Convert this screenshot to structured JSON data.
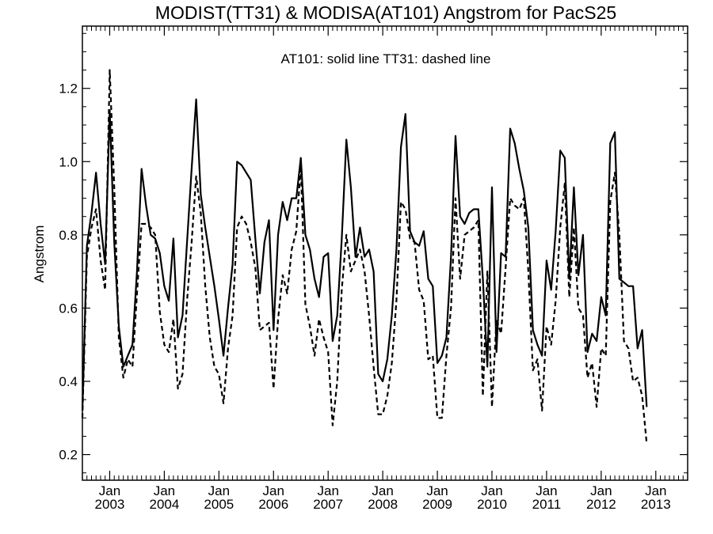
{
  "chart_data": {
    "type": "line",
    "title": "MODIST(TT31) & MODISA(AT101)  Angstrom for PacS25",
    "annotation": "AT101: solid line   TT31: dashed line",
    "xlabel": "",
    "ylabel": "Angstrom",
    "xlim": [
      "2002-07",
      "2013-08"
    ],
    "ylim": [
      0.13,
      1.37
    ],
    "y_ticks": [
      0.2,
      0.4,
      0.6,
      0.8,
      1.0,
      1.2
    ],
    "y_tick_labels": [
      "0.2",
      "0.4",
      "0.6",
      "0.8",
      "1.0",
      "1.2"
    ],
    "x_ticks": [
      {
        "month": "Jan",
        "year": "2003",
        "date": "2003-01"
      },
      {
        "month": "Jan",
        "year": "2004",
        "date": "2004-01"
      },
      {
        "month": "Jan",
        "year": "2005",
        "date": "2005-01"
      },
      {
        "month": "Jan",
        "year": "2006",
        "date": "2006-01"
      },
      {
        "month": "Jan",
        "year": "2007",
        "date": "2007-01"
      },
      {
        "month": "Jan",
        "year": "2008",
        "date": "2008-01"
      },
      {
        "month": "Jan",
        "year": "2009",
        "date": "2009-01"
      },
      {
        "month": "Jan",
        "year": "2010",
        "date": "2010-01"
      },
      {
        "month": "Jan",
        "year": "2011",
        "date": "2011-01"
      },
      {
        "month": "Jan",
        "year": "2012",
        "date": "2012-01"
      },
      {
        "month": "Jan",
        "year": "2013",
        "date": "2013-01"
      }
    ],
    "grid": false,
    "legend": "none",
    "series": [
      {
        "style": "solid",
        "color": "#000000",
        "points": [
          [
            "2002-07",
            0.32
          ],
          [
            "2002-08",
            0.77
          ],
          [
            "2002-09",
            0.86
          ],
          [
            "2002-10",
            0.97
          ],
          [
            "2002-11",
            0.83
          ],
          [
            "2002-12",
            0.72
          ],
          [
            "2003-01",
            1.14
          ],
          [
            "2003-02",
            0.78
          ],
          [
            "2003-03",
            0.55
          ],
          [
            "2003-04",
            0.44
          ],
          [
            "2003-05",
            0.47
          ],
          [
            "2003-06",
            0.5
          ],
          [
            "2003-07",
            0.7
          ],
          [
            "2003-08",
            0.98
          ],
          [
            "2003-09",
            0.88
          ],
          [
            "2003-10",
            0.8
          ],
          [
            "2003-11",
            0.79
          ],
          [
            "2003-12",
            0.75
          ],
          [
            "2004-01",
            0.66
          ],
          [
            "2004-02",
            0.62
          ],
          [
            "2004-03",
            0.79
          ],
          [
            "2004-04",
            0.52
          ],
          [
            "2004-05",
            0.58
          ],
          [
            "2004-06",
            0.78
          ],
          [
            "2004-07",
            0.98
          ],
          [
            "2004-08",
            1.17
          ],
          [
            "2004-09",
            0.91
          ],
          [
            "2004-10",
            0.82
          ],
          [
            "2004-11",
            0.74
          ],
          [
            "2004-12",
            0.66
          ],
          [
            "2005-01",
            0.57
          ],
          [
            "2005-02",
            0.47
          ],
          [
            "2005-03",
            0.6
          ],
          [
            "2005-04",
            0.72
          ],
          [
            "2005-05",
            1.0
          ],
          [
            "2005-06",
            0.99
          ],
          [
            "2005-07",
            0.97
          ],
          [
            "2005-08",
            0.95
          ],
          [
            "2005-09",
            0.79
          ],
          [
            "2005-10",
            0.64
          ],
          [
            "2005-11",
            0.78
          ],
          [
            "2005-12",
            0.84
          ],
          [
            "2006-01",
            0.54
          ],
          [
            "2006-02",
            0.8
          ],
          [
            "2006-03",
            0.89
          ],
          [
            "2006-04",
            0.84
          ],
          [
            "2006-05",
            0.9
          ],
          [
            "2006-06",
            0.9
          ],
          [
            "2006-07",
            1.01
          ],
          [
            "2006-08",
            0.8
          ],
          [
            "2006-09",
            0.76
          ],
          [
            "2006-10",
            0.68
          ],
          [
            "2006-11",
            0.63
          ],
          [
            "2006-12",
            0.74
          ],
          [
            "2007-01",
            0.75
          ],
          [
            "2007-02",
            0.51
          ],
          [
            "2007-03",
            0.58
          ],
          [
            "2007-04",
            0.79
          ],
          [
            "2007-05",
            1.06
          ],
          [
            "2007-06",
            0.93
          ],
          [
            "2007-07",
            0.74
          ],
          [
            "2007-08",
            0.82
          ],
          [
            "2007-09",
            0.74
          ],
          [
            "2007-10",
            0.76
          ],
          [
            "2007-11",
            0.7
          ],
          [
            "2007-12",
            0.42
          ],
          [
            "2008-01",
            0.4
          ],
          [
            "2008-02",
            0.46
          ],
          [
            "2008-03",
            0.58
          ],
          [
            "2008-04",
            0.76
          ],
          [
            "2008-05",
            1.04
          ],
          [
            "2008-06",
            1.13
          ],
          [
            "2008-07",
            0.81
          ],
          [
            "2008-08",
            0.78
          ],
          [
            "2008-09",
            0.77
          ],
          [
            "2008-10",
            0.81
          ],
          [
            "2008-11",
            0.68
          ],
          [
            "2008-12",
            0.66
          ],
          [
            "2009-01",
            0.45
          ],
          [
            "2009-02",
            0.47
          ],
          [
            "2009-03",
            0.52
          ],
          [
            "2009-04",
            0.74
          ],
          [
            "2009-05",
            1.07
          ],
          [
            "2009-06",
            0.85
          ],
          [
            "2009-07",
            0.83
          ],
          [
            "2009-08",
            0.86
          ],
          [
            "2009-09",
            0.87
          ],
          [
            "2009-10",
            0.87
          ],
          [
            "2009-11",
            0.68
          ],
          [
            "2009-12",
            0.44
          ],
          [
            "2010-01",
            0.93
          ],
          [
            "2010-02",
            0.48
          ],
          [
            "2010-03",
            0.75
          ],
          [
            "2010-04",
            0.74
          ],
          [
            "2010-05",
            1.09
          ],
          [
            "2010-06",
            1.05
          ],
          [
            "2010-07",
            0.98
          ],
          [
            "2010-08",
            0.92
          ],
          [
            "2010-09",
            0.82
          ],
          [
            "2010-10",
            0.54
          ],
          [
            "2010-11",
            0.5
          ],
          [
            "2010-12",
            0.47
          ],
          [
            "2011-01",
            0.73
          ],
          [
            "2011-02",
            0.65
          ],
          [
            "2011-03",
            0.81
          ],
          [
            "2011-04",
            1.03
          ],
          [
            "2011-05",
            1.01
          ],
          [
            "2011-06",
            0.68
          ],
          [
            "2011-07",
            0.93
          ],
          [
            "2011-08",
            0.69
          ],
          [
            "2011-09",
            0.8
          ],
          [
            "2011-10",
            0.48
          ],
          [
            "2011-11",
            0.53
          ],
          [
            "2011-12",
            0.51
          ],
          [
            "2012-01",
            0.63
          ],
          [
            "2012-02",
            0.58
          ],
          [
            "2012-03",
            1.05
          ],
          [
            "2012-04",
            1.08
          ],
          [
            "2012-05",
            0.68
          ],
          [
            "2012-06",
            0.67
          ],
          [
            "2012-07",
            0.66
          ],
          [
            "2012-08",
            0.66
          ],
          [
            "2012-09",
            0.49
          ],
          [
            "2012-10",
            0.54
          ],
          [
            "2012-11",
            0.33
          ]
        ]
      },
      {
        "style": "dashed",
        "color": "#000000",
        "points": [
          [
            "2002-07",
            0.3
          ],
          [
            "2002-08",
            0.74
          ],
          [
            "2002-09",
            0.82
          ],
          [
            "2002-10",
            0.87
          ],
          [
            "2002-11",
            0.73
          ],
          [
            "2002-12",
            0.65
          ],
          [
            "2003-01",
            1.25
          ],
          [
            "2003-02",
            0.93
          ],
          [
            "2003-03",
            0.52
          ],
          [
            "2003-04",
            0.41
          ],
          [
            "2003-05",
            0.46
          ],
          [
            "2003-06",
            0.44
          ],
          [
            "2003-07",
            0.64
          ],
          [
            "2003-08",
            0.83
          ],
          [
            "2003-09",
            0.83
          ],
          [
            "2003-10",
            0.82
          ],
          [
            "2003-11",
            0.8
          ],
          [
            "2003-12",
            0.59
          ],
          [
            "2004-01",
            0.5
          ],
          [
            "2004-02",
            0.48
          ],
          [
            "2004-03",
            0.57
          ],
          [
            "2004-04",
            0.38
          ],
          [
            "2004-05",
            0.42
          ],
          [
            "2004-06",
            0.62
          ],
          [
            "2004-07",
            0.78
          ],
          [
            "2004-08",
            0.96
          ],
          [
            "2004-09",
            0.86
          ],
          [
            "2004-10",
            0.66
          ],
          [
            "2004-11",
            0.52
          ],
          [
            "2004-12",
            0.44
          ],
          [
            "2005-01",
            0.42
          ],
          [
            "2005-02",
            0.34
          ],
          [
            "2005-03",
            0.49
          ],
          [
            "2005-04",
            0.58
          ],
          [
            "2005-05",
            0.82
          ],
          [
            "2005-06",
            0.85
          ],
          [
            "2005-07",
            0.83
          ],
          [
            "2005-08",
            0.78
          ],
          [
            "2005-09",
            0.71
          ],
          [
            "2005-10",
            0.54
          ],
          [
            "2005-11",
            0.55
          ],
          [
            "2005-12",
            0.56
          ],
          [
            "2006-01",
            0.38
          ],
          [
            "2006-02",
            0.57
          ],
          [
            "2006-03",
            0.69
          ],
          [
            "2006-04",
            0.64
          ],
          [
            "2006-05",
            0.76
          ],
          [
            "2006-06",
            0.81
          ],
          [
            "2006-07",
            0.99
          ],
          [
            "2006-08",
            0.61
          ],
          [
            "2006-09",
            0.55
          ],
          [
            "2006-10",
            0.47
          ],
          [
            "2006-11",
            0.57
          ],
          [
            "2006-12",
            0.52
          ],
          [
            "2007-01",
            0.48
          ],
          [
            "2007-02",
            0.28
          ],
          [
            "2007-03",
            0.4
          ],
          [
            "2007-04",
            0.65
          ],
          [
            "2007-05",
            0.8
          ],
          [
            "2007-06",
            0.7
          ],
          [
            "2007-07",
            0.73
          ],
          [
            "2007-08",
            0.76
          ],
          [
            "2007-09",
            0.7
          ],
          [
            "2007-10",
            0.58
          ],
          [
            "2007-11",
            0.44
          ],
          [
            "2007-12",
            0.31
          ],
          [
            "2008-01",
            0.31
          ],
          [
            "2008-02",
            0.36
          ],
          [
            "2008-03",
            0.45
          ],
          [
            "2008-04",
            0.62
          ],
          [
            "2008-05",
            0.89
          ],
          [
            "2008-06",
            0.87
          ],
          [
            "2008-07",
            0.79
          ],
          [
            "2008-08",
            0.78
          ],
          [
            "2008-09",
            0.65
          ],
          [
            "2008-10",
            0.62
          ],
          [
            "2008-11",
            0.46
          ],
          [
            "2008-12",
            0.47
          ],
          [
            "2009-01",
            0.3
          ],
          [
            "2009-02",
            0.3
          ],
          [
            "2009-03",
            0.47
          ],
          [
            "2009-04",
            0.6
          ],
          [
            "2009-05",
            0.9
          ],
          [
            "2009-06",
            0.68
          ],
          [
            "2009-07",
            0.8
          ],
          [
            "2009-08",
            0.81
          ],
          [
            "2009-09",
            0.82
          ],
          [
            "2009-10",
            0.84
          ],
          [
            "2009-11",
            0.36
          ],
          [
            "2009-12",
            0.7
          ],
          [
            "2010-01",
            0.33
          ],
          [
            "2010-02",
            0.57
          ],
          [
            "2010-03",
            0.53
          ],
          [
            "2010-04",
            0.71
          ],
          [
            "2010-05",
            0.9
          ],
          [
            "2010-06",
            0.88
          ],
          [
            "2010-07",
            0.87
          ],
          [
            "2010-08",
            0.9
          ],
          [
            "2010-09",
            0.7
          ],
          [
            "2010-10",
            0.43
          ],
          [
            "2010-11",
            0.46
          ],
          [
            "2010-12",
            0.32
          ],
          [
            "2011-01",
            0.55
          ],
          [
            "2011-02",
            0.5
          ],
          [
            "2011-03",
            0.62
          ],
          [
            "2011-04",
            0.82
          ],
          [
            "2011-05",
            0.94
          ],
          [
            "2011-06",
            0.63
          ],
          [
            "2011-07",
            0.82
          ],
          [
            "2011-08",
            0.6
          ],
          [
            "2011-09",
            0.58
          ],
          [
            "2011-10",
            0.41
          ],
          [
            "2011-11",
            0.45
          ],
          [
            "2011-12",
            0.33
          ],
          [
            "2012-01",
            0.49
          ],
          [
            "2012-02",
            0.47
          ],
          [
            "2012-03",
            0.89
          ],
          [
            "2012-04",
            0.97
          ],
          [
            "2012-05",
            0.8
          ],
          [
            "2012-06",
            0.51
          ],
          [
            "2012-07",
            0.49
          ],
          [
            "2012-08",
            0.4
          ],
          [
            "2012-09",
            0.41
          ],
          [
            "2012-10",
            0.36
          ],
          [
            "2012-11",
            0.23
          ]
        ]
      }
    ]
  }
}
